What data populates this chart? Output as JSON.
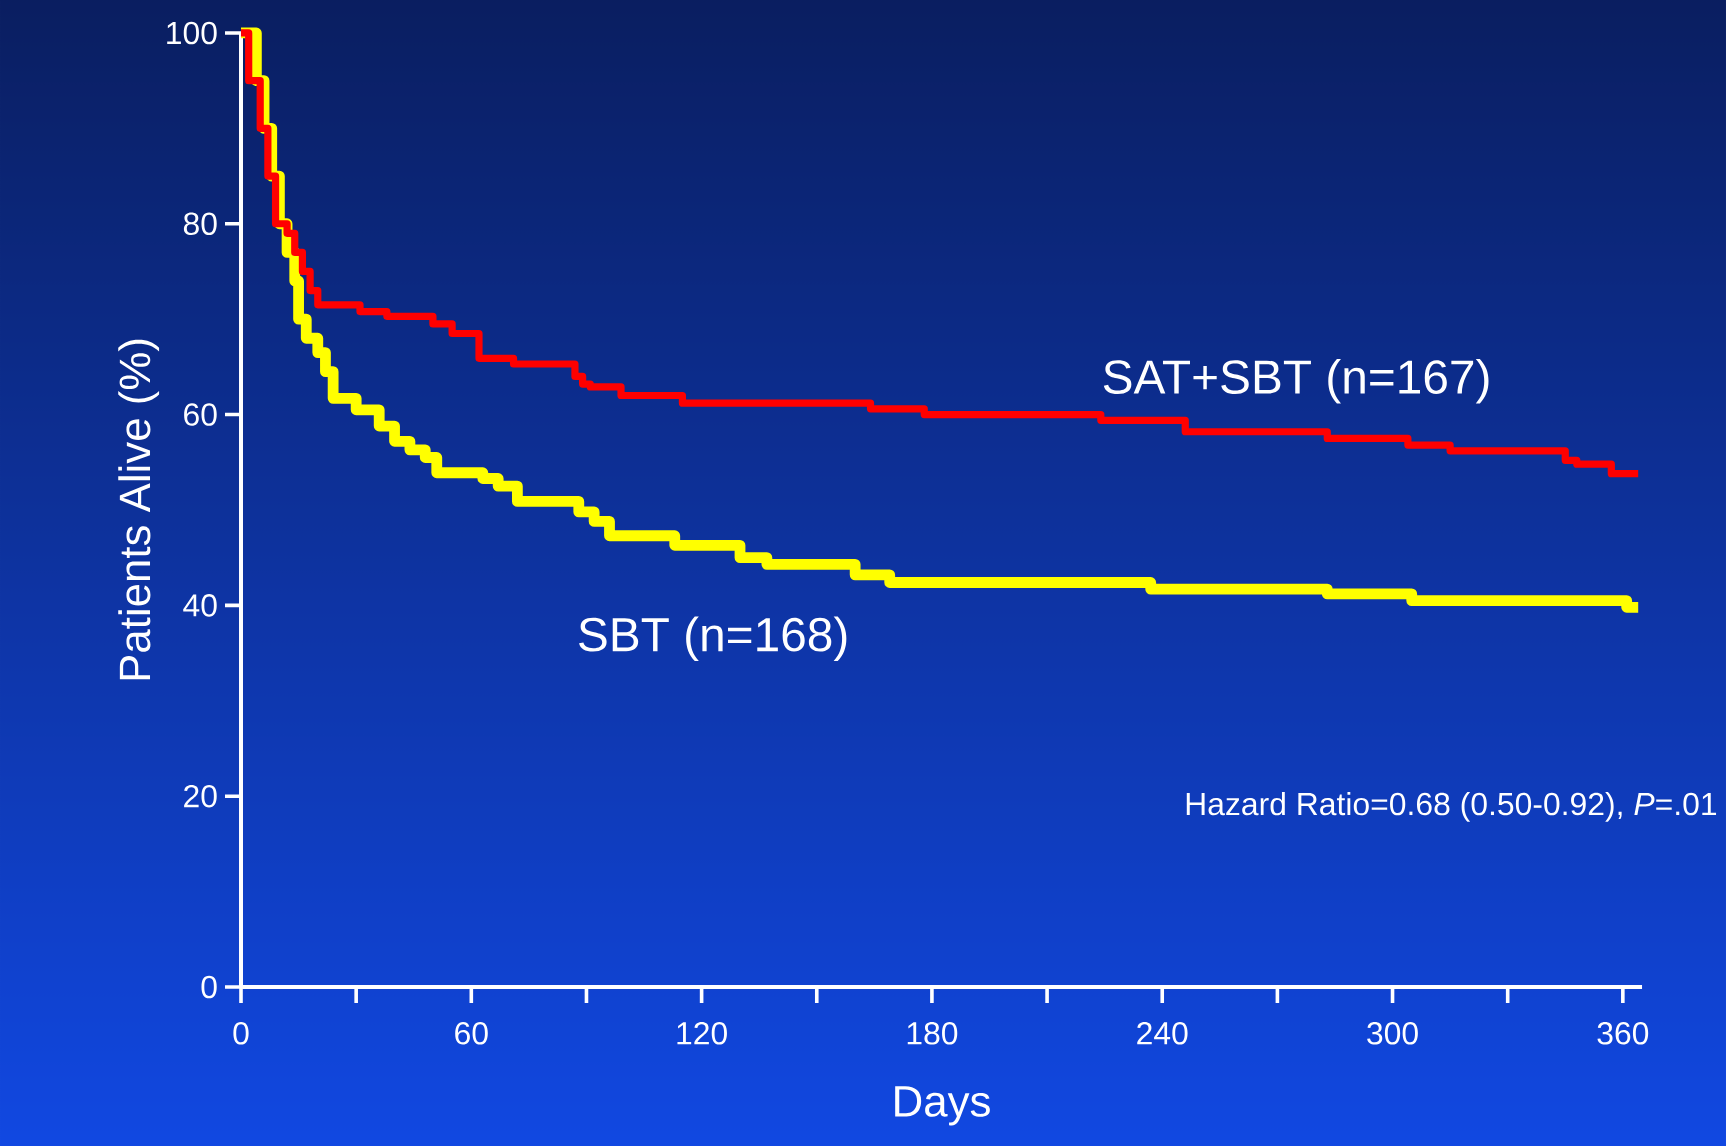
{
  "chart_data": {
    "type": "step",
    "xlabel": "Days",
    "ylabel": "Patients Alive (%)",
    "xlim": [
      0,
      365
    ],
    "ylim": [
      0,
      100
    ],
    "xticks": [
      0,
      {
        "value": 30,
        "label": null
      },
      60,
      {
        "value": 90,
        "label": null
      },
      120,
      {
        "value": 150,
        "label": null
      },
      180,
      {
        "value": 210,
        "label": null
      },
      240,
      {
        "value": 270,
        "label": null
      },
      300,
      {
        "value": 330,
        "label": null
      },
      360
    ],
    "yticks": [
      0,
      20,
      40,
      60,
      80,
      100
    ],
    "marker": "none",
    "line_style": "solid",
    "annotations": [
      "Hazard Ratio=0.68 (0.50-0.92), *P*=.01"
    ],
    "series": [
      {
        "name": "SBT (n=168)",
        "color": "#ffff00",
        "x": [
          0,
          4,
          6,
          8,
          10,
          12,
          14,
          15,
          17,
          20,
          22,
          24,
          30,
          36,
          40,
          44,
          48,
          51,
          63,
          67,
          72,
          88,
          92,
          96,
          113,
          130,
          137,
          160,
          169,
          237,
          283,
          305,
          361,
          364
        ],
        "values": [
          100,
          95,
          90,
          85,
          80,
          77,
          74,
          70,
          68,
          66.5,
          64.5,
          61.7,
          60.5,
          58.8,
          57.2,
          56.3,
          55.5,
          53.9,
          53.3,
          52.5,
          50.9,
          49.8,
          48.8,
          47.3,
          46.3,
          45,
          44.3,
          43.2,
          42.4,
          41.7,
          41.2,
          40.5,
          39.8,
          39.8
        ]
      },
      {
        "name": "SAT+SBT (n=167)",
        "color": "#ff0000",
        "x": [
          0,
          2,
          5,
          7,
          9,
          12,
          14,
          16,
          18,
          20,
          31,
          38,
          50,
          55,
          62,
          71,
          87,
          89,
          91,
          99,
          115,
          164,
          178,
          224,
          246,
          283,
          304,
          315,
          345,
          348,
          357,
          364
        ],
        "values": [
          100,
          95,
          90,
          85,
          80,
          79,
          77,
          75,
          73,
          71.5,
          70.8,
          70.3,
          69.5,
          68.5,
          65.9,
          65.3,
          64,
          63.2,
          62.9,
          62,
          61.2,
          60.6,
          60,
          59.4,
          58.2,
          57.5,
          56.8,
          56.2,
          55.2,
          54.8,
          53.8,
          53.8
        ]
      }
    ]
  }
}
